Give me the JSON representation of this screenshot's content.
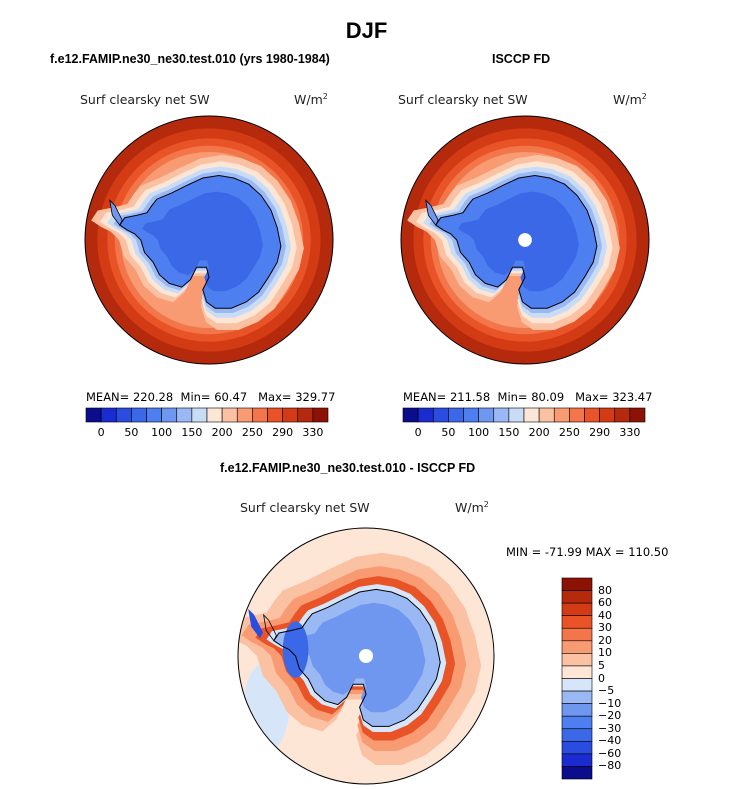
{
  "figure": {
    "title": "DJF"
  },
  "chart_data": [
    {
      "type": "heatmap",
      "projection": "south-polar-stereographic",
      "title": "f.e12.FAMIP.ne30_ne30.test.010 (yrs 1980-1984)",
      "variable": "Surf clearsky net SW",
      "units": "W/m",
      "units_sup": "2",
      "stats": {
        "mean_label": "MEAN=",
        "mean": "220.28",
        "min_label": "Min=",
        "min": "60.47",
        "max_label": "Max=",
        "max": "329.77"
      },
      "colorbar": {
        "orientation": "horizontal",
        "tick_labels": [
          "0",
          "50",
          "100",
          "150",
          "200",
          "250",
          "290",
          "330"
        ]
      }
    },
    {
      "type": "heatmap",
      "projection": "south-polar-stereographic",
      "title": "ISCCP FD",
      "variable": "Surf clearsky net SW",
      "units": "W/m",
      "units_sup": "2",
      "stats": {
        "mean_label": "MEAN=",
        "mean": "211.58",
        "min_label": "Min=",
        "min": "80.09",
        "max_label": "Max=",
        "max": "323.47"
      },
      "colorbar": {
        "orientation": "horizontal",
        "tick_labels": [
          "0",
          "50",
          "100",
          "150",
          "200",
          "250",
          "290",
          "330"
        ]
      }
    },
    {
      "type": "heatmap",
      "projection": "south-polar-stereographic",
      "title": "f.e12.FAMIP.ne30_ne30.test.010 - ISCCP FD",
      "variable": "Surf clearsky net SW",
      "units": "W/m",
      "units_sup": "2",
      "stats_text": "MIN = -71.99 MAX = 110.50",
      "colorbar": {
        "orientation": "vertical",
        "tick_labels": [
          "80",
          "60",
          "40",
          "30",
          "20",
          "10",
          "5",
          "0",
          "−5",
          "−10",
          "−20",
          "−30",
          "−40",
          "−60",
          "−80"
        ]
      }
    }
  ],
  "colors": {
    "seq": [
      "#0a0d8c",
      "#1a2bd0",
      "#2a4de0",
      "#3a68e6",
      "#4d7ff0",
      "#6f97f0",
      "#9ab8f4",
      "#c8dcf6",
      "#fde6d6",
      "#fbc1a3",
      "#f89a72",
      "#f3764a",
      "#e85427",
      "#d23b14",
      "#b52a0c",
      "#8c1206"
    ],
    "diff": [
      "#0a0d8c",
      "#1a2bd0",
      "#2a4de0",
      "#3a68e6",
      "#4d7ff0",
      "#6f97f0",
      "#9ab8f4",
      "#d6e6f8",
      "#fde6d6",
      "#fbc1a3",
      "#f89a72",
      "#f3764a",
      "#e85427",
      "#d23b14",
      "#b52a0c",
      "#8c1206"
    ]
  }
}
